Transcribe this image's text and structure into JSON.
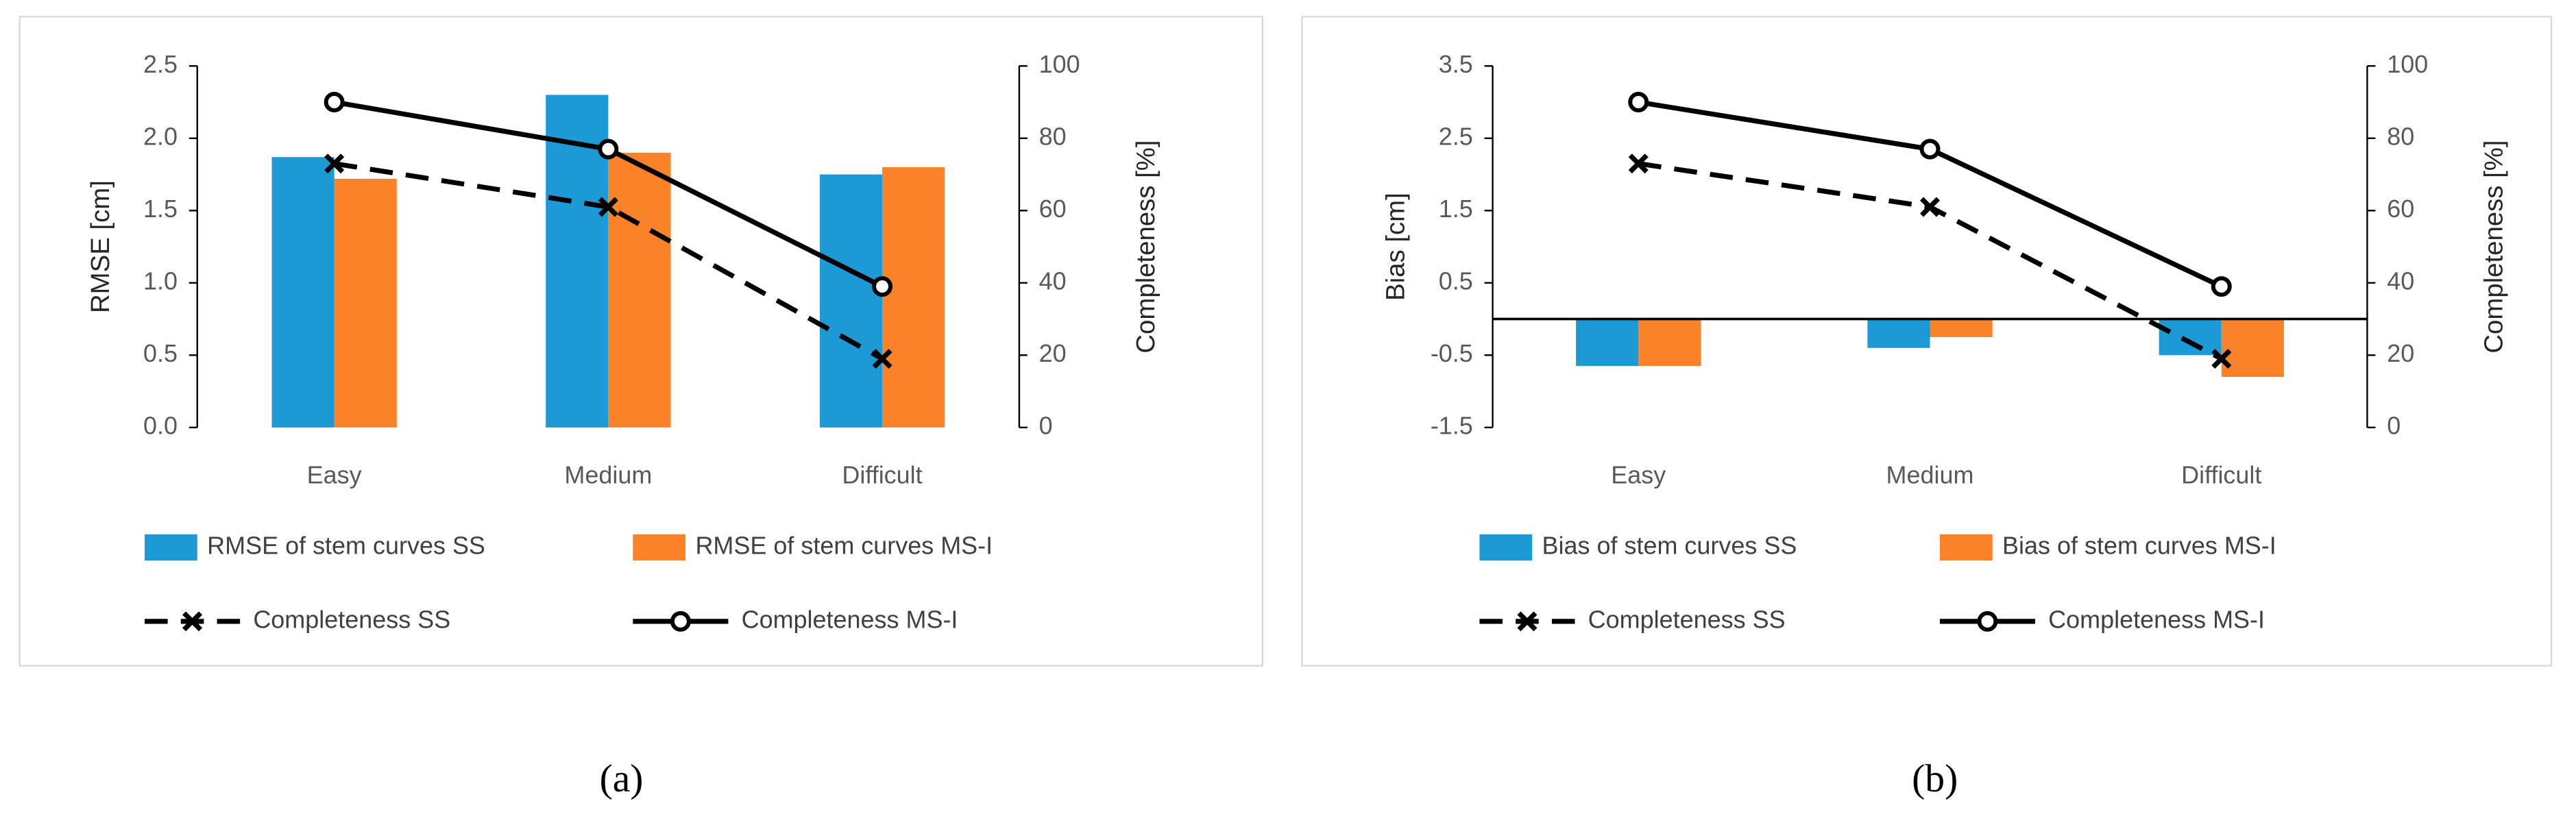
{
  "chart_data": [
    {
      "type": "bar",
      "caption": "(a)",
      "y_label": "RMSE [cm]",
      "y2_label": "Completeness [%]",
      "categories": [
        "Easy",
        "Medium",
        "Difficult"
      ],
      "series": [
        {
          "name": "RMSE of stem curves SS",
          "color": "#1b9ad6",
          "values": [
            1.87,
            2.3,
            1.75
          ]
        },
        {
          "name": "RMSE of stem curves MS-I",
          "color": "#fb8228",
          "values": [
            1.72,
            1.9,
            1.8
          ]
        },
        {
          "name": "Completeness SS",
          "color": "#000000",
          "axis": "y2",
          "line": "dashed",
          "marker": "x",
          "values": [
            73,
            61,
            19
          ]
        },
        {
          "name": "Completeness MS-I",
          "color": "#000000",
          "axis": "y2",
          "line": "solid",
          "marker": "circle",
          "values": [
            90,
            77,
            39
          ]
        }
      ],
      "ylim": [
        0,
        2.5
      ],
      "yticks": [
        {
          "value": 0,
          "label": "0.0"
        },
        0.5,
        {
          "value": 1,
          "label": "1.0"
        },
        1.5,
        {
          "value": 2,
          "label": "2.0"
        },
        2.5
      ],
      "y2lim": [
        0,
        100
      ],
      "y2ticks": [
        0,
        20,
        40,
        60,
        80,
        100
      ],
      "zero_line": false
    },
    {
      "type": "bar",
      "caption": "(b)",
      "y_label": "Bias [cm]",
      "y2_label": "Completeness [%]",
      "categories": [
        "Easy",
        "Medium",
        "Difficult"
      ],
      "series": [
        {
          "name": "Bias of stem curves SS",
          "color": "#1b9ad6",
          "values": [
            -0.65,
            -0.4,
            -0.5
          ]
        },
        {
          "name": "Bias of stem curves MS-I",
          "color": "#fb8228",
          "values": [
            -0.65,
            -0.25,
            -0.8
          ]
        },
        {
          "name": "Completeness SS",
          "color": "#000000",
          "axis": "y2",
          "line": "dashed",
          "marker": "x",
          "values": [
            73,
            61,
            19
          ]
        },
        {
          "name": "Completeness MS-I",
          "color": "#000000",
          "axis": "y2",
          "line": "solid",
          "marker": "circle",
          "values": [
            90,
            77,
            39
          ]
        }
      ],
      "ylim": [
        -1.5,
        3.5
      ],
      "yticks": [
        -1.5,
        -0.5,
        0.5,
        1.5,
        2.5,
        3.5
      ],
      "y2lim": [
        0,
        100
      ],
      "y2ticks": [
        0,
        20,
        40,
        60,
        80,
        100
      ],
      "zero_line": true
    }
  ]
}
